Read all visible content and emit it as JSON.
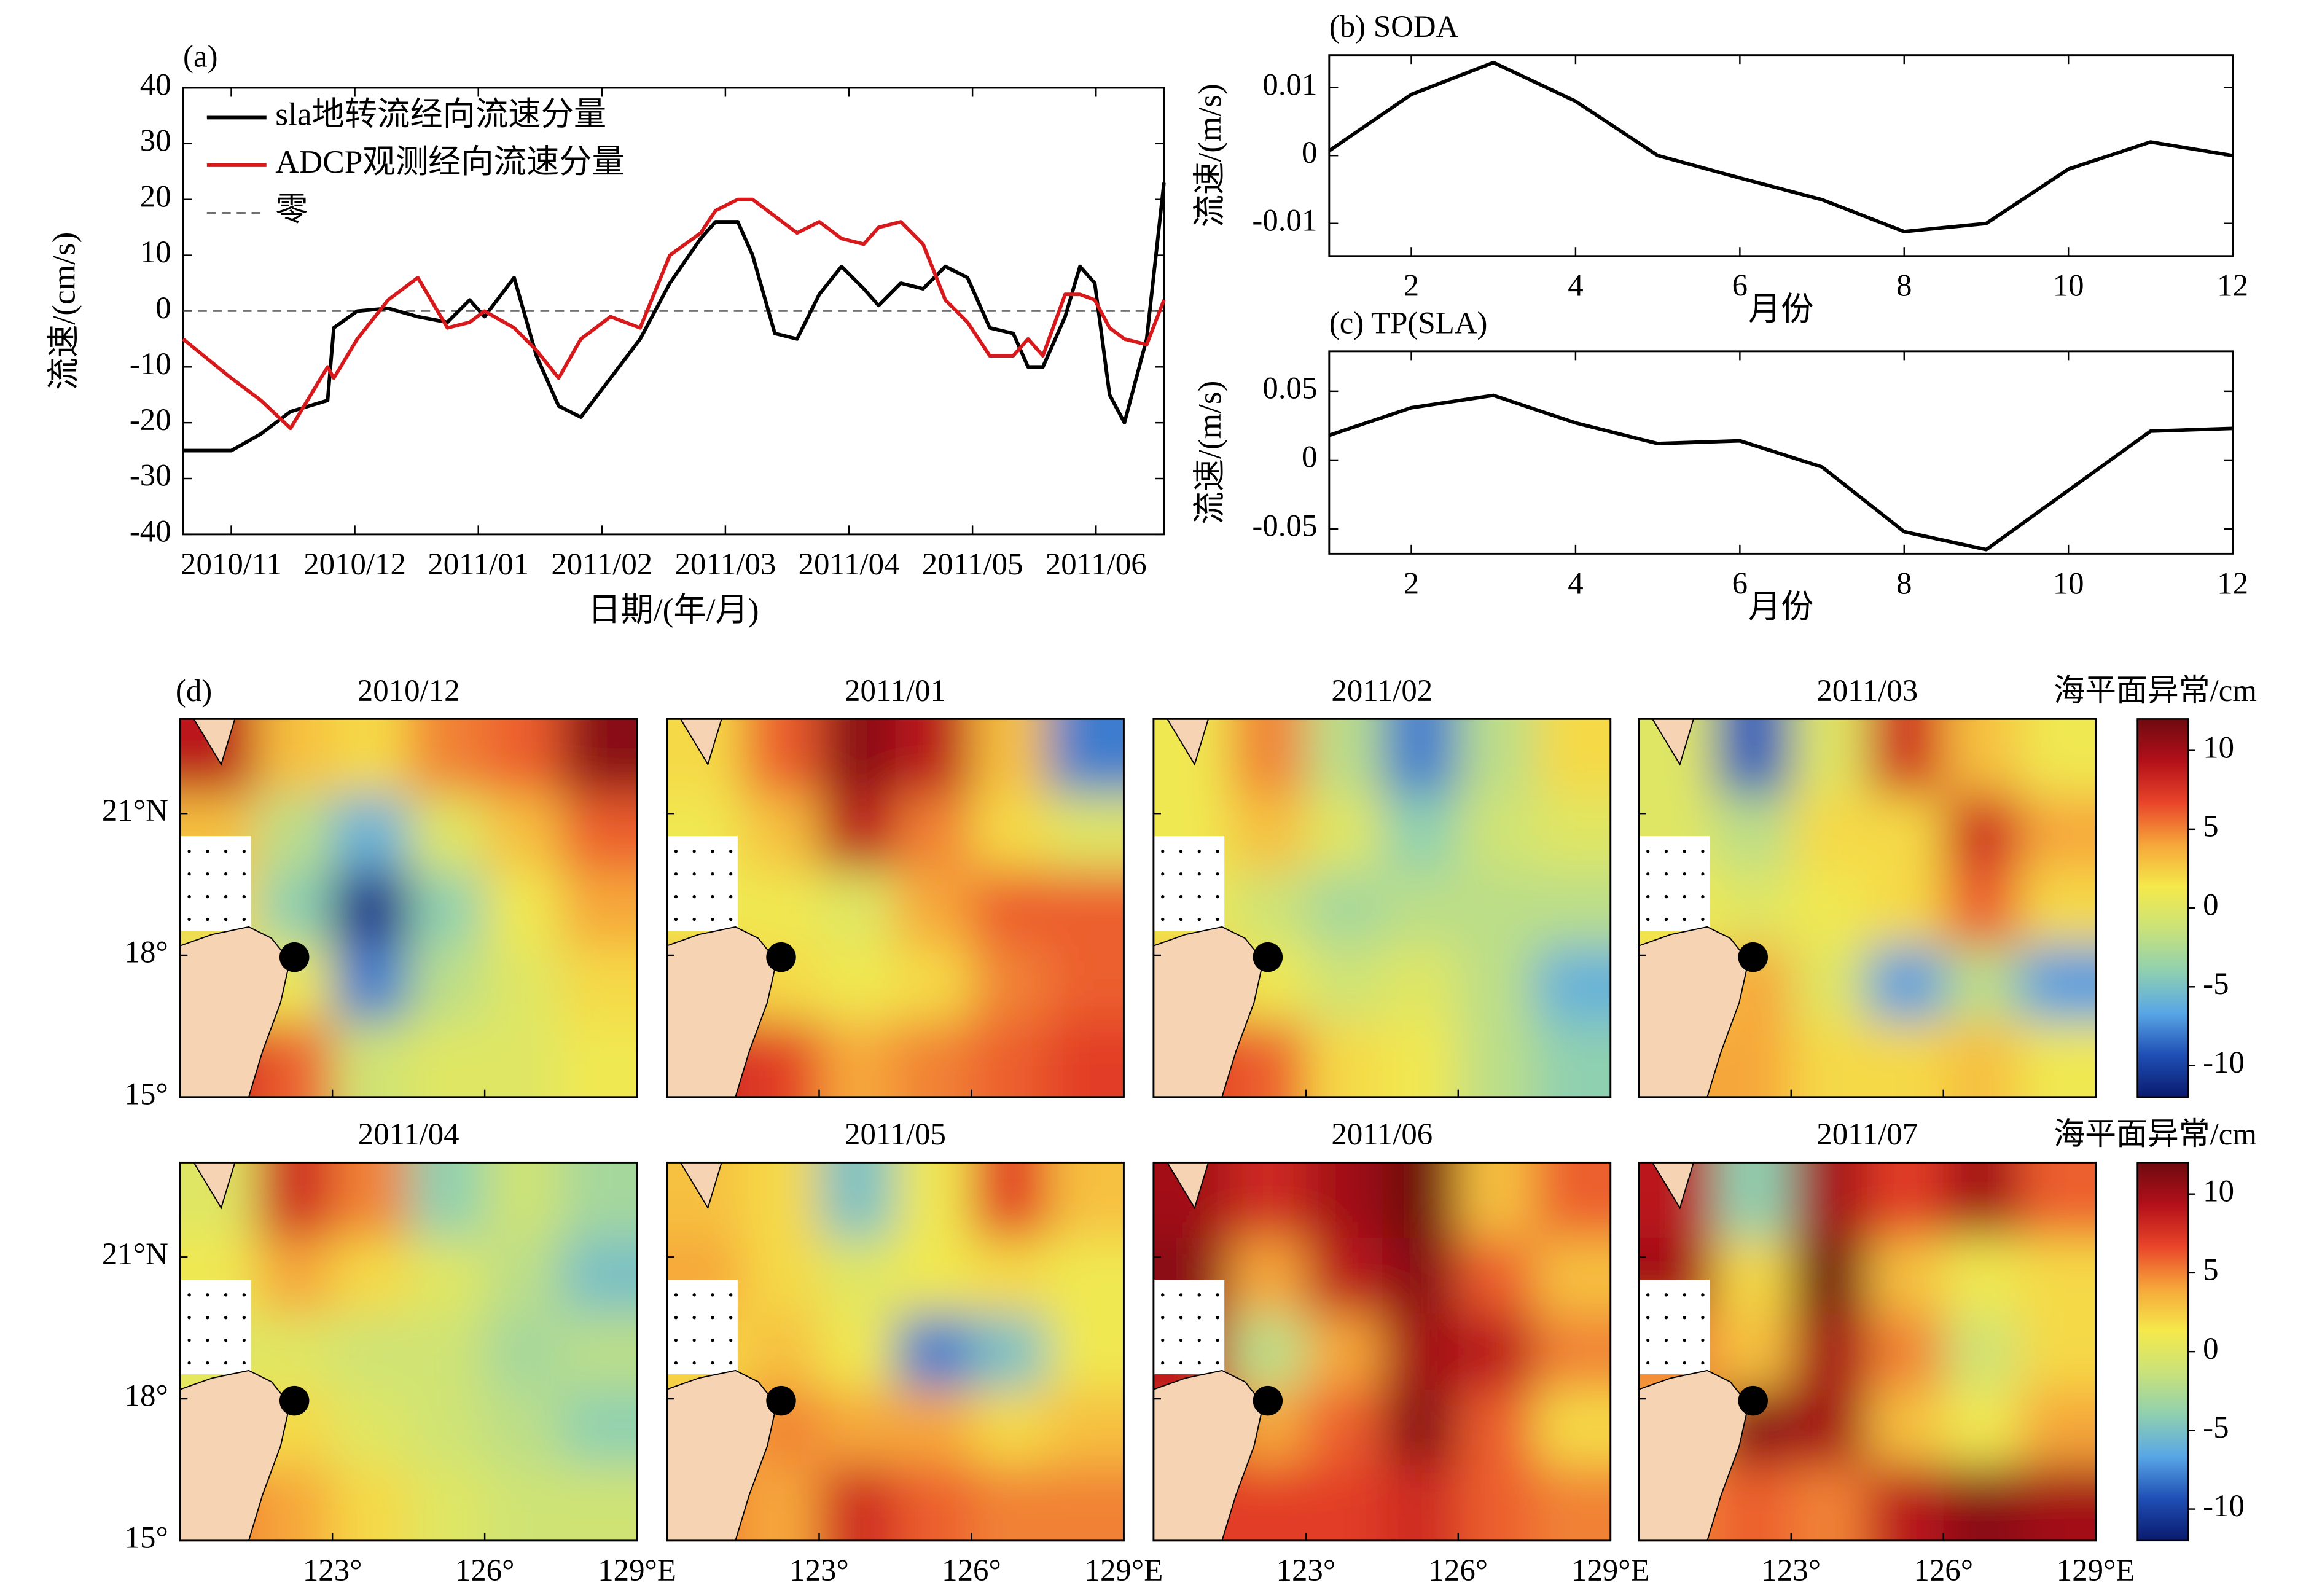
{
  "chart_data": [
    {
      "type": "line",
      "title": "(a)",
      "xlabel": "日期/(年/月)",
      "ylabel": "流速/(cm/s)",
      "x": [
        -0.39,
        0,
        0.24,
        0.48,
        0.78,
        0.83,
        1.02,
        1.27,
        1.51,
        1.75,
        1.93,
        2.05,
        2.29,
        2.47,
        2.65,
        2.83,
        3.07,
        3.31,
        3.55,
        3.8,
        3.92,
        4.1,
        4.22,
        4.4,
        4.58,
        4.76,
        4.94,
        5.12,
        5.24,
        5.42,
        5.6,
        5.78,
        5.96,
        6.14,
        6.33,
        6.45,
        6.57,
        6.75,
        6.87,
        6.99,
        7.11,
        7.23,
        7.41,
        7.55
      ],
      "series": [
        {
          "name": "sla地转流经向流速分量",
          "color": "#000000",
          "values": [
            -25,
            -25,
            -22,
            -18,
            -16,
            -3,
            0,
            0.5,
            -1,
            -2,
            2,
            -1,
            6,
            -8,
            -17,
            -19,
            -12,
            -5,
            5,
            13,
            16,
            16,
            10,
            -4,
            -5,
            3,
            8,
            4,
            1,
            5,
            4,
            8,
            6,
            -3,
            -4,
            -10,
            -10,
            -1,
            8,
            5,
            -15,
            -20,
            -5,
            23
          ]
        },
        {
          "name": "ADCP观测经向流速分量",
          "color": "#d7191c",
          "values": [
            -5,
            -12,
            -16,
            -21,
            -10,
            -12,
            -5,
            2,
            6,
            -3,
            -2,
            0,
            -3,
            -7,
            -12,
            -5,
            -1,
            -3,
            10,
            14,
            18,
            20,
            20,
            17,
            14,
            16,
            13,
            12,
            15,
            16,
            12,
            2,
            -2,
            -8,
            -8,
            -5,
            -8,
            3,
            3,
            2,
            -3,
            -5,
            -6,
            2
          ]
        }
      ],
      "zero_line": {
        "name": "零",
        "value": 0,
        "color": "#444444"
      },
      "legend": "upper left",
      "xlim": [
        -0.39,
        7.55
      ],
      "xticks": [
        {
          "value": 0,
          "label": "2010/11"
        },
        {
          "value": 1,
          "label": "2010/12"
        },
        {
          "value": 2,
          "label": "2011/01"
        },
        {
          "value": 3,
          "label": "2011/02"
        },
        {
          "value": 4,
          "label": "2011/03"
        },
        {
          "value": 5,
          "label": "2011/04"
        },
        {
          "value": 6,
          "label": "2011/05"
        },
        {
          "value": 7,
          "label": "2011/06"
        }
      ],
      "ylim": [
        -40,
        40
      ],
      "yticks": [
        -40,
        -30,
        -20,
        -10,
        0,
        10,
        20,
        30,
        40
      ]
    },
    {
      "type": "line",
      "title": "(b) SODA",
      "xlabel": "月份",
      "ylabel": "流速/(m/s)",
      "x": [
        1,
        2,
        3,
        4,
        5,
        6,
        7,
        8,
        9,
        10,
        11,
        12
      ],
      "color": "#000000",
      "values": [
        0.0007,
        0.009,
        0.0137,
        0.008,
        0,
        -0.0033,
        -0.0065,
        -0.0112,
        -0.01,
        -0.002,
        0.002,
        0
      ],
      "xlim": [
        1,
        12
      ],
      "xticks": [
        2,
        4,
        6,
        8,
        10,
        12
      ],
      "ylim": [
        -0.0148,
        0.0148
      ],
      "yticks": [
        -0.01,
        0,
        0.01
      ]
    },
    {
      "type": "line",
      "title": "(c) TP(SLA)",
      "xlabel": "月份",
      "ylabel": "流速/(m/s)",
      "x": [
        1,
        2,
        3,
        4,
        5,
        6,
        7,
        8,
        9,
        10,
        11,
        12
      ],
      "color": "#000000",
      "values": [
        0.018,
        0.038,
        0.047,
        0.027,
        0.012,
        0.014,
        -0.005,
        -0.052,
        -0.065,
        -0.022,
        0.021,
        0.023
      ],
      "xlim": [
        1,
        12
      ],
      "xticks": [
        2,
        4,
        6,
        8,
        10,
        12
      ],
      "ylim": [
        -0.068,
        0.079
      ],
      "yticks": [
        -0.05,
        0,
        0.05
      ]
    },
    {
      "type": "heatmap",
      "title": "(d)",
      "xlim": [
        120,
        129
      ],
      "ylim": [
        15,
        23
      ],
      "xticks": [
        {
          "value": 123,
          "label": "123°"
        },
        {
          "value": 126,
          "label": "126°"
        },
        {
          "value": 129,
          "label": "129°E"
        }
      ],
      "yticks": [
        {
          "value": 15,
          "label": "15°"
        },
        {
          "value": 18,
          "label": "18°"
        },
        {
          "value": 21,
          "label": "21°N"
        }
      ],
      "colorbar": {
        "label": "海平面异常/cm",
        "lim": [
          -12,
          12
        ],
        "ticks": [
          -10,
          -5,
          0,
          5,
          10
        ],
        "colormap": [
          "#0a1a6e",
          "#1f4fb5",
          "#58a6e6",
          "#8fd0b0",
          "#c9e27a",
          "#f5e94b",
          "#f6a73a",
          "#e9452a",
          "#b3101a",
          "#6e0a0f"
        ]
      },
      "panels": [
        {
          "title": "2010/12",
          "values": [
            [
              9,
              3,
              2,
              5,
              6,
              11
            ],
            [
              3,
              -2,
              -6,
              0,
              3,
              6
            ],
            [
              2,
              -4,
              -11,
              -4,
              1,
              4
            ],
            [
              0,
              1,
              -8,
              -2,
              0,
              2
            ],
            [
              8,
              6,
              -1,
              0,
              0,
              1
            ]
          ]
        },
        {
          "title": "2011/01",
          "values": [
            [
              2,
              6,
              11,
              9,
              3,
              -8
            ],
            [
              1,
              3,
              9,
              5,
              2,
              0
            ],
            [
              1,
              1,
              0,
              4,
              6,
              6
            ],
            [
              3,
              2,
              1,
              2,
              5,
              6
            ],
            [
              8,
              7,
              4,
              5,
              6,
              7
            ]
          ]
        },
        {
          "title": "2011/02",
          "values": [
            [
              1,
              5,
              -2,
              -8,
              -2,
              2
            ],
            [
              1,
              3,
              0,
              -4,
              -1,
              0
            ],
            [
              1,
              -1,
              -3,
              -2,
              -2,
              -2
            ],
            [
              3,
              1,
              -1,
              0,
              -2,
              -6
            ],
            [
              7,
              6,
              2,
              1,
              -2,
              -4
            ]
          ]
        },
        {
          "title": "2011/03",
          "values": [
            [
              0,
              -9,
              0,
              8,
              3,
              1
            ],
            [
              0,
              -2,
              2,
              2,
              8,
              4
            ],
            [
              1,
              0,
              1,
              2,
              6,
              2
            ],
            [
              2,
              4,
              0,
              -7,
              -2,
              -7
            ],
            [
              4,
              4,
              2,
              2,
              3,
              1
            ]
          ]
        },
        {
          "title": "2011/04",
          "values": [
            [
              0,
              8,
              5,
              -4,
              -1,
              -3
            ],
            [
              1,
              4,
              2,
              0,
              -2,
              -5
            ],
            [
              0,
              0,
              -1,
              -1,
              -3,
              -2
            ],
            [
              1,
              2,
              0,
              -1,
              -2,
              -4
            ],
            [
              5,
              4,
              2,
              0,
              -1,
              -1
            ]
          ]
        },
        {
          "title": "2011/05",
          "values": [
            [
              3,
              2,
              -5,
              1,
              7,
              3
            ],
            [
              4,
              2,
              0,
              1,
              2,
              1
            ],
            [
              2,
              3,
              1,
              -8,
              -5,
              1
            ],
            [
              3,
              5,
              4,
              4,
              2,
              3
            ],
            [
              5,
              4,
              8,
              6,
              5,
              5
            ]
          ]
        },
        {
          "title": "2011/06",
          "values": [
            [
              10,
              8,
              10,
              12,
              3,
              6
            ],
            [
              11,
              4,
              9,
              11,
              6,
              3
            ],
            [
              9,
              -2,
              4,
              10,
              9,
              5
            ],
            [
              8,
              4,
              6,
              11,
              6,
              2
            ],
            [
              7,
              7,
              7,
              8,
              6,
              5
            ]
          ]
        },
        {
          "title": "2011/07",
          "values": [
            [
              9,
              -4,
              10,
              7,
              10,
              6
            ],
            [
              10,
              2,
              12,
              3,
              1,
              2
            ],
            [
              5,
              3,
              10,
              5,
              -1,
              2
            ],
            [
              4,
              11,
              10,
              3,
              1,
              4
            ],
            [
              5,
              6,
              5,
              9,
              11,
              10
            ]
          ]
        }
      ]
    }
  ]
}
